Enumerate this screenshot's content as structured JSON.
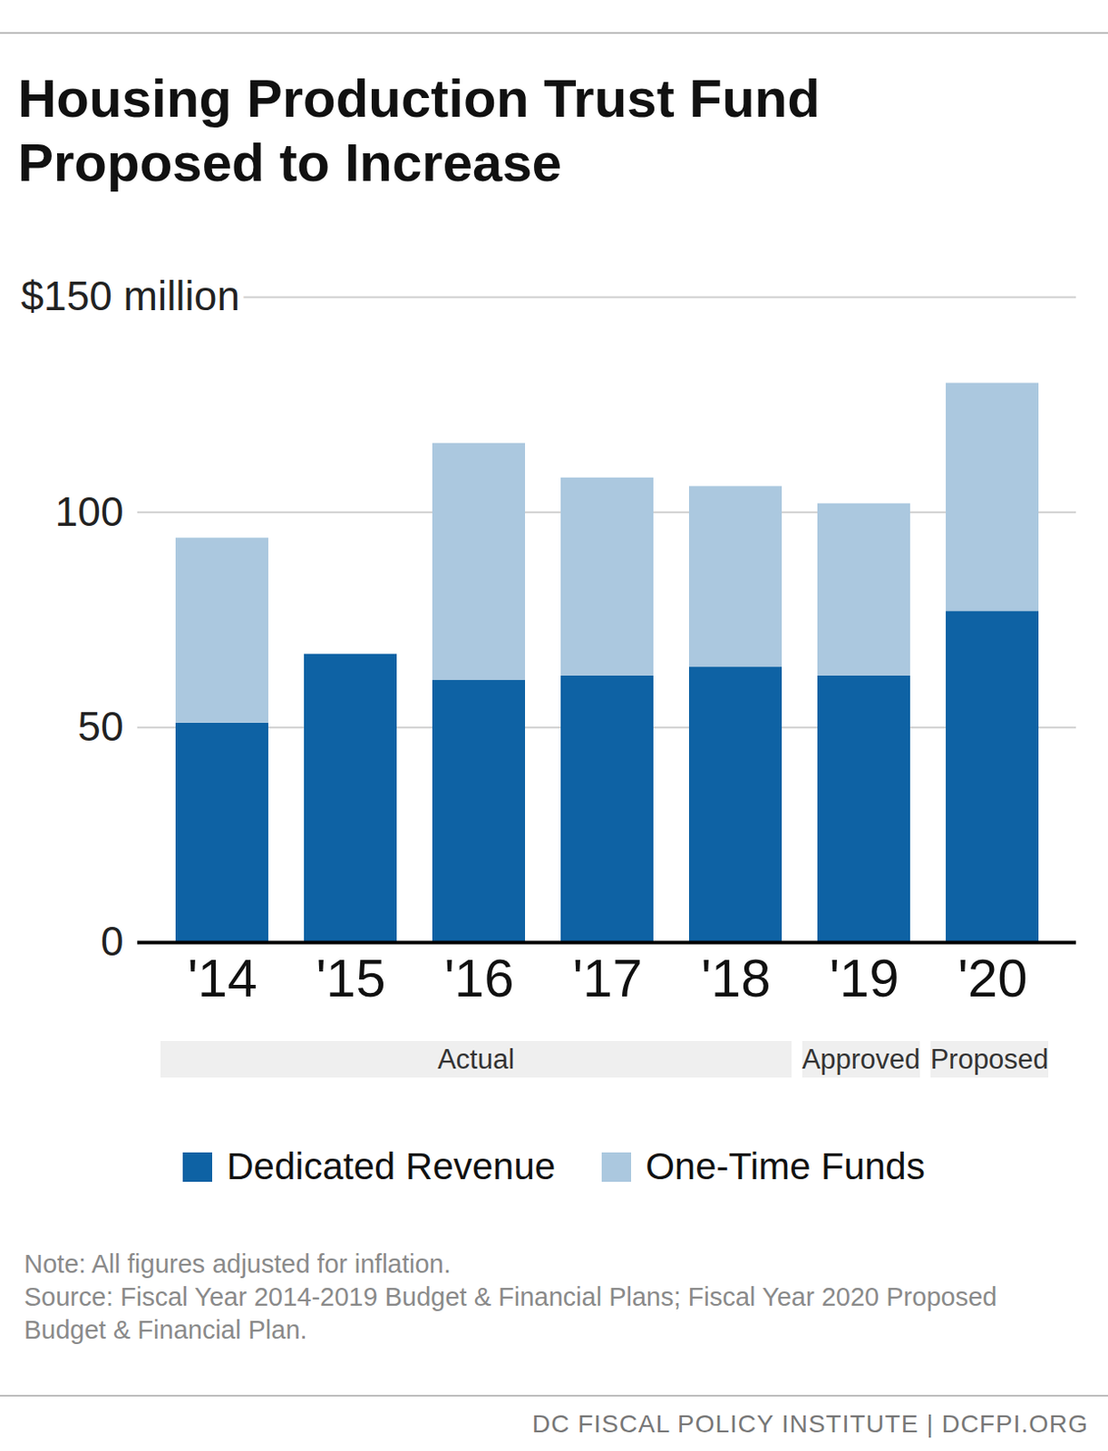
{
  "chart_data": {
    "type": "bar",
    "title": "Housing Production Trust Fund Proposed to Increase",
    "categories": [
      "'14",
      "'15",
      "'16",
      "'17",
      "'18",
      "'19",
      "'20"
    ],
    "series": [
      {
        "name": "Dedicated Revenue",
        "color": "#0e62a4",
        "values": [
          51,
          67,
          61,
          62,
          64,
          62,
          77
        ]
      },
      {
        "name": "One-Time Funds",
        "color": "#abc8df",
        "values": [
          43,
          0,
          55,
          46,
          42,
          40,
          53
        ]
      }
    ],
    "stacked": true,
    "ylim": [
      0,
      150
    ],
    "yticks": [
      0,
      50,
      100,
      {
        "value": 150,
        "label": "$150 million"
      }
    ],
    "grid": true,
    "legend": "bottom",
    "annotations": [
      {
        "text": "Actual",
        "from": "'14",
        "to": "'18"
      },
      {
        "text": "Approved",
        "from": "'19",
        "to": "'19"
      },
      {
        "text": "Proposed",
        "from": "'20",
        "to": "'20"
      }
    ],
    "note": "Note: All figures adjusted for inflation.",
    "source": "Source: Fiscal Year 2014-2019 Budget & Financial Plans; Fiscal Year 2020 Proposed Budget & Financial Plan.",
    "credit": "DC FISCAL POLICY INSTITUTE | DCFPI.ORG"
  }
}
